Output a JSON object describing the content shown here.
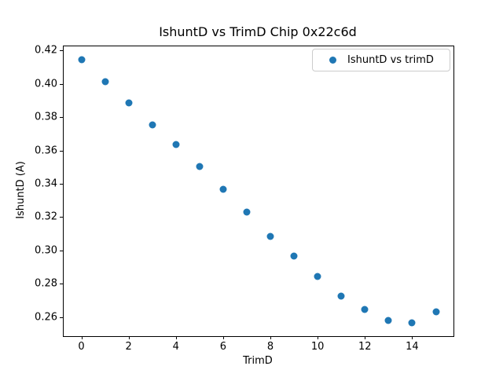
{
  "figure": {
    "title": "IshuntD vs TrimD Chip 0x22c6d",
    "xlabel": "TrimD",
    "ylabel": "IshuntD (A)"
  },
  "legend": {
    "label": "IshuntD vs trimD",
    "marker": "circle-icon"
  },
  "colors": {
    "marker": "#1f77b4",
    "text": "#000000",
    "spine": "#000000",
    "legend_border": "#cccccc",
    "background": "#ffffff"
  },
  "chart_data": {
    "type": "scatter",
    "title": "IshuntD vs TrimD Chip 0x22c6d",
    "xlabel": "TrimD",
    "ylabel": "IshuntD (A)",
    "grid": false,
    "legend_position": "upper right",
    "marker_color": "#1f77b4",
    "xlim": [
      -0.75,
      15.75
    ],
    "ylim": [
      0.2486,
      0.4224
    ],
    "xticks": {
      "values": [
        0,
        2,
        4,
        6,
        8,
        10,
        12,
        14
      ],
      "labels": [
        "0",
        "2",
        "4",
        "6",
        "8",
        "10",
        "12",
        "14"
      ]
    },
    "yticks": {
      "values": [
        0.42,
        0.4,
        0.38,
        0.36,
        0.34,
        0.32,
        0.3,
        0.28,
        0.26
      ],
      "labels": [
        "0.42",
        "0.40",
        "0.38",
        "0.36",
        "0.34",
        "0.32",
        "0.30",
        "0.28",
        "0.26"
      ]
    },
    "series": [
      {
        "name": "IshuntD vs trimD",
        "x": [
          0,
          1,
          2,
          3,
          4,
          5,
          6,
          7,
          8,
          9,
          10,
          11,
          12,
          13,
          14,
          15
        ],
        "y": [
          0.4145,
          0.401,
          0.3885,
          0.3755,
          0.3635,
          0.3505,
          0.3365,
          0.323,
          0.3085,
          0.2965,
          0.2845,
          0.2725,
          0.2645,
          0.258,
          0.2565,
          0.263
        ]
      }
    ]
  }
}
